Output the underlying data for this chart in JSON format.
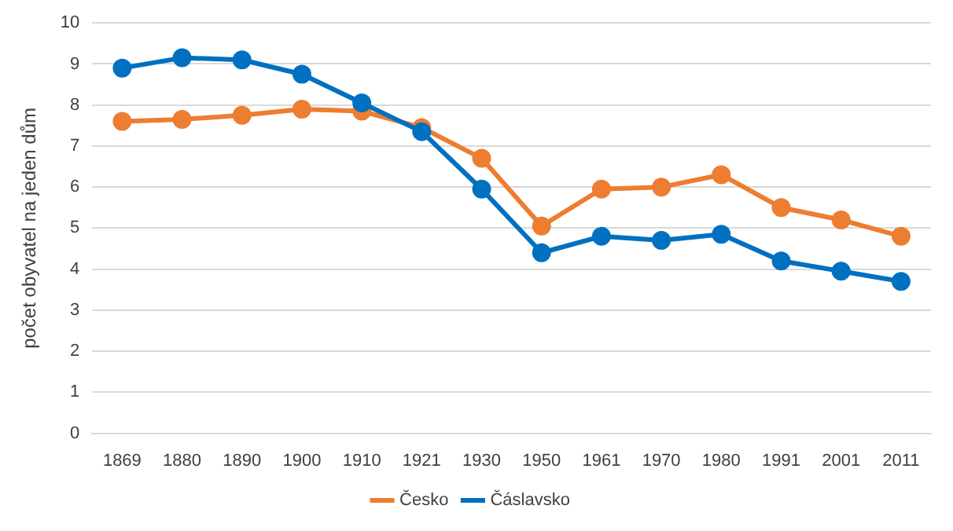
{
  "chart_data": {
    "type": "line",
    "ylabel": "počet obyvatel na jeden dům",
    "categories": [
      "1869",
      "1880",
      "1890",
      "1900",
      "1910",
      "1921",
      "1930",
      "1950",
      "1961",
      "1970",
      "1980",
      "1991",
      "2001",
      "2011"
    ],
    "series": [
      {
        "name": "Česko",
        "color": "#ed7d31",
        "values": [
          7.6,
          7.65,
          7.75,
          7.9,
          7.85,
          7.45,
          6.7,
          5.05,
          5.95,
          6.0,
          6.3,
          5.5,
          5.2,
          4.8
        ]
      },
      {
        "name": "Čáslavsko",
        "color": "#0070c0",
        "values": [
          8.9,
          9.15,
          9.1,
          8.75,
          8.05,
          7.35,
          5.95,
          4.4,
          4.8,
          4.7,
          4.85,
          4.2,
          3.95,
          3.7
        ]
      }
    ],
    "ylim": [
      0,
      10
    ],
    "yticks": [
      0,
      1,
      2,
      3,
      4,
      5,
      6,
      7,
      8,
      9,
      10
    ],
    "grid": "y",
    "legend": "bottom",
    "marker": "circle",
    "line_style": "solid"
  }
}
